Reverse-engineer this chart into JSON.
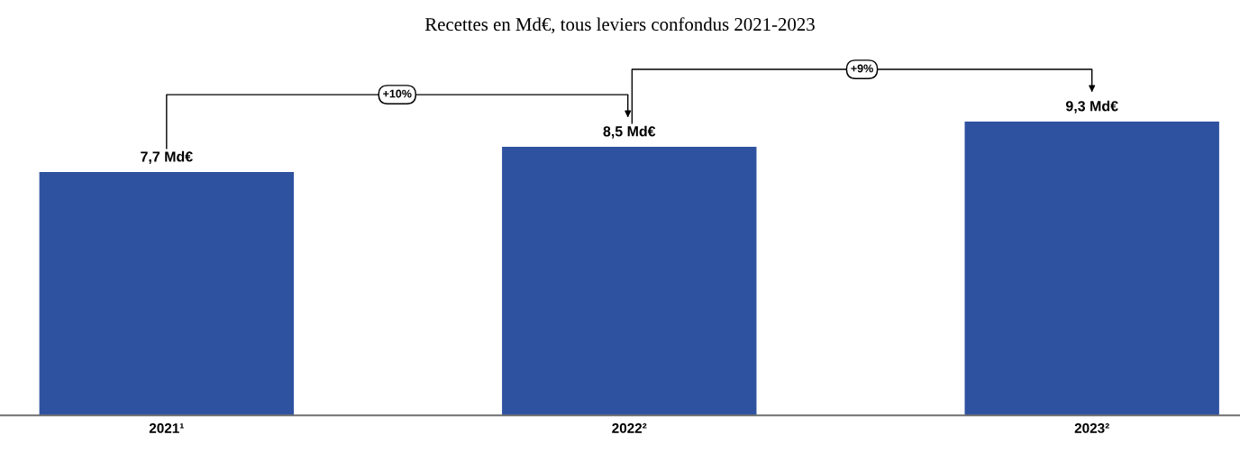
{
  "chart_data": {
    "type": "bar",
    "title": "Recettes en Md€, tous leviers confondus 2021-2023",
    "categories": [
      "2021¹",
      "2022²",
      "2023²"
    ],
    "values": [
      7.7,
      8.5,
      9.3
    ],
    "value_labels": [
      "7,7 Md€",
      "8,5 Md€",
      "9,3 Md€"
    ],
    "color": "#2e52a0",
    "annotations": [
      "+10%",
      "+9%"
    ],
    "grid": false,
    "legend": false
  }
}
